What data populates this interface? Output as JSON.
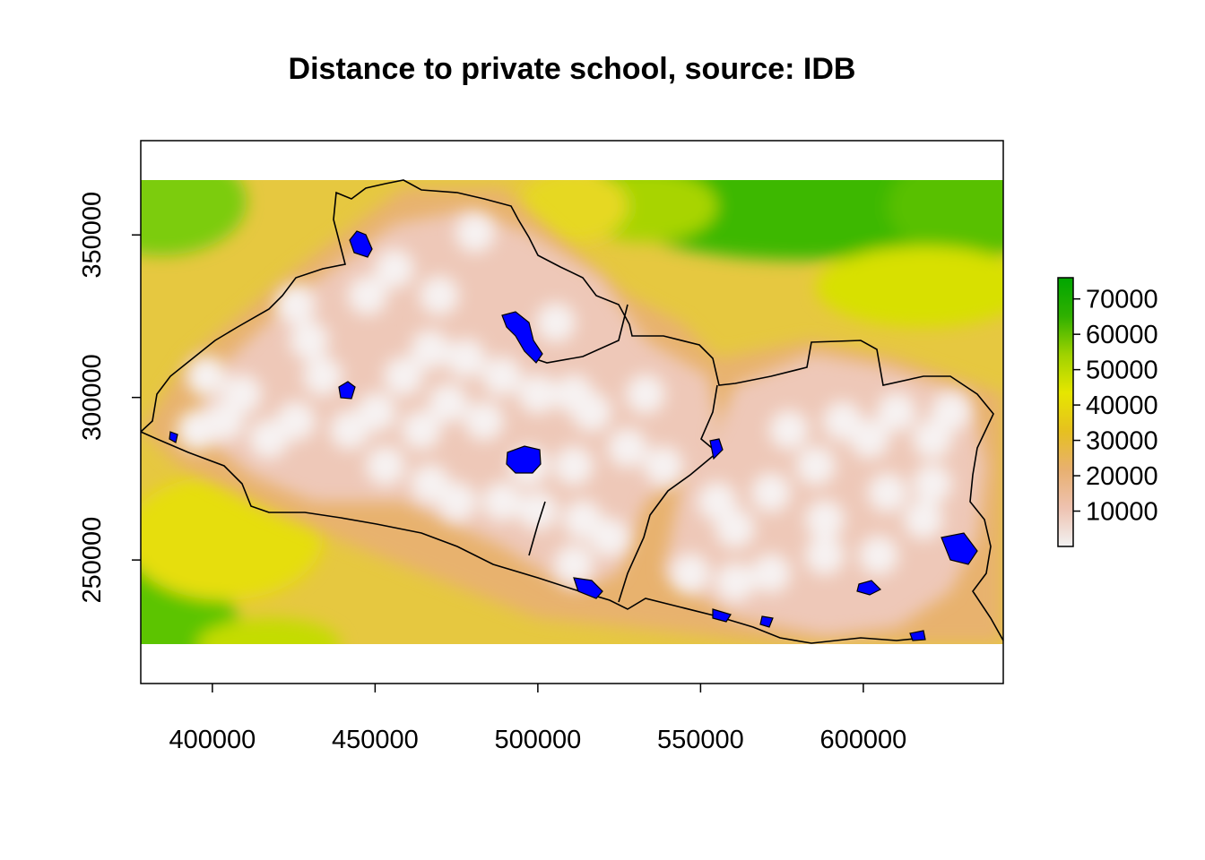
{
  "title": "Distance to private school, source: IDB",
  "x_axis": {
    "ticks": [
      400000,
      450000,
      500000,
      550000,
      600000
    ],
    "tick_labels": [
      "400000",
      "450000",
      "500000",
      "550000",
      "600000"
    ],
    "range": [
      378000,
      643000
    ]
  },
  "y_axis": {
    "ticks": [
      250000,
      300000,
      350000
    ],
    "tick_labels": [
      "250000",
      "300000",
      "350000"
    ],
    "range": [
      212000,
      379000
    ]
  },
  "raster_extent": {
    "x": [
      378000,
      643000
    ],
    "y": [
      227000,
      370000
    ]
  },
  "legend": {
    "ticks": [
      10000,
      20000,
      30000,
      40000,
      50000,
      60000,
      70000
    ],
    "tick_labels": [
      "10000",
      "20000",
      "30000",
      "40000",
      "50000",
      "60000",
      "70000"
    ],
    "range": [
      0,
      76000
    ],
    "colors": [
      "#f2f2f2",
      "#eec2b0",
      "#e8b070",
      "#e6c020",
      "#e6e600",
      "#9fd200",
      "#2fb000",
      "#00a600"
    ]
  },
  "colors": {
    "far": "#00a600",
    "mid": "#e6e600",
    "near": "#f2f2f2",
    "water": "#0000ff",
    "boundary": "#000000"
  },
  "chart_data": {
    "type": "heatmap",
    "title": "Distance to private school, source: IDB",
    "xlabel": "",
    "ylabel": "",
    "xlim": [
      378000,
      643000
    ],
    "ylim": [
      212000,
      379000
    ],
    "value_range": [
      0,
      76000
    ],
    "grid": false,
    "legend_position": "right"
  }
}
